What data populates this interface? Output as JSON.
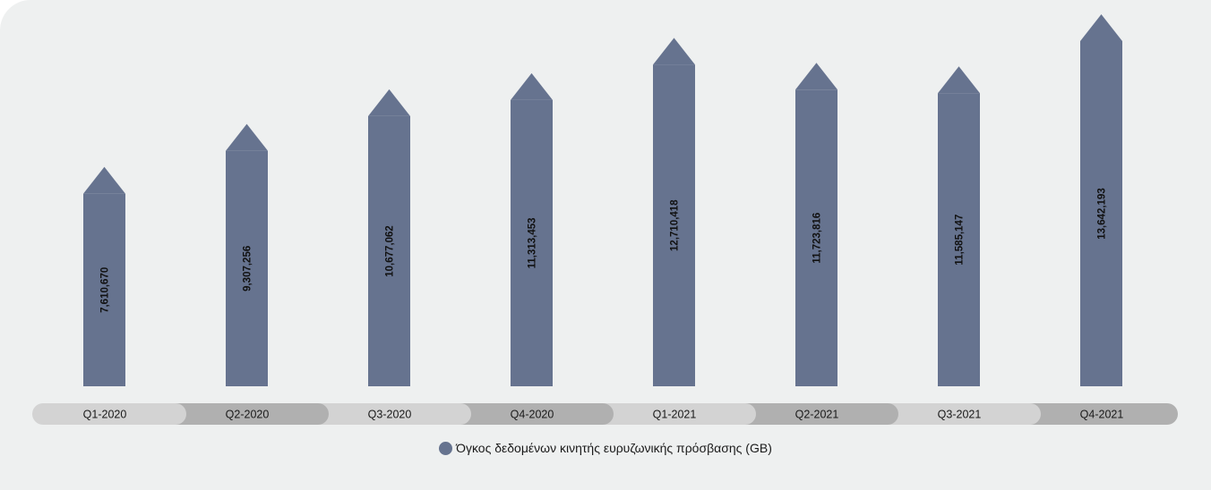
{
  "chart_data": {
    "type": "bar",
    "title": "",
    "xlabel": "",
    "ylabel": "",
    "categories": [
      "Q1-2020",
      "Q2-2020",
      "Q3-2020",
      "Q4-2020",
      "Q1-2021",
      "Q2-2021",
      "Q3-2021",
      "Q4-2021"
    ],
    "series": [
      {
        "name": "Όγκος δεδομένων κινητής ευρυζωνικής πρόσβασης (GB)",
        "values": [
          7610670,
          9307256,
          10677062,
          11313453,
          12710418,
          11723816,
          11585147,
          13642193
        ],
        "labels": [
          "7,610,670",
          "9,307,256",
          "10,677,062",
          "11,313,453",
          "12,710,418",
          "11,723,816",
          "11,585,147",
          "13,642,193"
        ],
        "color": "#66738f"
      }
    ],
    "legend_position": "bottom-center",
    "grid": false,
    "axis_band_colors": [
      "#d3d3d3",
      "#b0b0b0"
    ]
  }
}
